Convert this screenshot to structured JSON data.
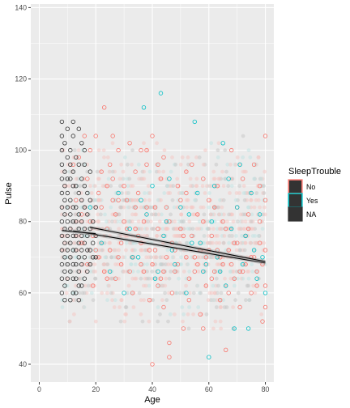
{
  "chart_data": {
    "type": "scatter",
    "title": "",
    "xlabel": "Age",
    "ylabel": "Pulse",
    "xlim": [
      -3,
      83
    ],
    "ylim": [
      35,
      141
    ],
    "x_ticks": [
      0,
      20,
      40,
      60,
      80
    ],
    "y_ticks": [
      40,
      60,
      80,
      100,
      120,
      140
    ],
    "grid": true,
    "legend": {
      "title": "SleepTrouble",
      "placement": "right",
      "entries": [
        {
          "label": "No",
          "color": "#F8766D"
        },
        {
          "label": "Yes",
          "color": "#00BFC4"
        },
        {
          "label": "NA",
          "color": "#333333"
        }
      ]
    },
    "background_points": {
      "note_color": "#c8c8c8",
      "x_range": [
        8,
        80
      ],
      "pulse_values": [
        50,
        52,
        54,
        56,
        58,
        60,
        62,
        64,
        66,
        68,
        70,
        72,
        74,
        76,
        78,
        80,
        82,
        84,
        86,
        88,
        90,
        92,
        94,
        96,
        98,
        100,
        102,
        104
      ]
    },
    "series": [
      {
        "name": "No",
        "color": "#F8766D",
        "points": [
          [
            12,
            96
          ],
          [
            13,
            86
          ],
          [
            14,
            98
          ],
          [
            15,
            82
          ],
          [
            16,
            104
          ],
          [
            17,
            92
          ],
          [
            18,
            100
          ],
          [
            19,
            76
          ],
          [
            20,
            104
          ],
          [
            21,
            88
          ],
          [
            22,
            84
          ],
          [
            23,
            112
          ],
          [
            24,
            78
          ],
          [
            25,
            96
          ],
          [
            26,
            92
          ],
          [
            27,
            82
          ],
          [
            28,
            100
          ],
          [
            29,
            74
          ],
          [
            30,
            90
          ],
          [
            31,
            86
          ],
          [
            32,
            102
          ],
          [
            33,
            70
          ],
          [
            34,
            94
          ],
          [
            35,
            88
          ],
          [
            36,
            68
          ],
          [
            37,
            80
          ],
          [
            38,
            96
          ],
          [
            39,
            58
          ],
          [
            40,
            104
          ],
          [
            41,
            72
          ],
          [
            42,
            62
          ],
          [
            43,
            92
          ],
          [
            44,
            56
          ],
          [
            45,
            84
          ],
          [
            46,
            42
          ],
          [
            47,
            74
          ],
          [
            48,
            66
          ],
          [
            49,
            90
          ],
          [
            50,
            78
          ],
          [
            51,
            50
          ],
          [
            52,
            88
          ],
          [
            53,
            64
          ],
          [
            54,
            96
          ],
          [
            55,
            70
          ],
          [
            56,
            82
          ],
          [
            57,
            54
          ],
          [
            58,
            92
          ],
          [
            59,
            62
          ],
          [
            60,
            86
          ],
          [
            61,
            76
          ],
          [
            62,
            66
          ],
          [
            63,
            90
          ],
          [
            64,
            58
          ],
          [
            65,
            80
          ],
          [
            66,
            44
          ],
          [
            67,
            72
          ],
          [
            68,
            100
          ],
          [
            69,
            64
          ],
          [
            70,
            84
          ],
          [
            71,
            56
          ],
          [
            72,
            92
          ],
          [
            73,
            68
          ],
          [
            74,
            78
          ],
          [
            75,
            60
          ],
          [
            76,
            96
          ],
          [
            77,
            66
          ],
          [
            78,
            74
          ],
          [
            79,
            52
          ],
          [
            80,
            104
          ],
          [
            80,
            86
          ],
          [
            80,
            72
          ],
          [
            80,
            62
          ],
          [
            80,
            56
          ],
          [
            79,
            68
          ],
          [
            78,
            80
          ],
          [
            15,
            74
          ],
          [
            17,
            68
          ],
          [
            19,
            62
          ],
          [
            21,
            70
          ],
          [
            23,
            66
          ],
          [
            25,
            72
          ],
          [
            27,
            64
          ],
          [
            29,
            68
          ],
          [
            31,
            78
          ],
          [
            33,
            60
          ],
          [
            35,
            76
          ],
          [
            37,
            66
          ],
          [
            39,
            72
          ],
          [
            41,
            84
          ],
          [
            43,
            64
          ],
          [
            45,
            70
          ],
          [
            47,
            60
          ],
          [
            49,
            68
          ],
          [
            51,
            76
          ],
          [
            53,
            58
          ],
          [
            55,
            66
          ],
          [
            57,
            72
          ],
          [
            59,
            70
          ],
          [
            61,
            64
          ],
          [
            63,
            72
          ],
          [
            65,
            68
          ],
          [
            67,
            60
          ],
          [
            69,
            74
          ],
          [
            71,
            66
          ],
          [
            73,
            76
          ],
          [
            75,
            70
          ],
          [
            77,
            62
          ],
          [
            18,
            80
          ],
          [
            20,
            72
          ],
          [
            22,
            94
          ],
          [
            24,
            64
          ],
          [
            26,
            86
          ],
          [
            28,
            70
          ],
          [
            30,
            80
          ],
          [
            32,
            66
          ],
          [
            34,
            78
          ],
          [
            36,
            74
          ],
          [
            38,
            84
          ],
          [
            40,
            68
          ],
          [
            42,
            78
          ],
          [
            44,
            66
          ],
          [
            46,
            80
          ],
          [
            48,
            72
          ],
          [
            50,
            86
          ],
          [
            52,
            70
          ],
          [
            54,
            76
          ],
          [
            56,
            68
          ],
          [
            58,
            80
          ],
          [
            60,
            72
          ],
          [
            62,
            84
          ],
          [
            64,
            70
          ],
          [
            66,
            78
          ],
          [
            68,
            68
          ],
          [
            70,
            74
          ],
          [
            72,
            66
          ],
          [
            74,
            82
          ],
          [
            76,
            70
          ],
          [
            78,
            90
          ],
          [
            40,
            40
          ],
          [
            46,
            46
          ],
          [
            58,
            50
          ],
          [
            38,
            100
          ],
          [
            42,
            96
          ],
          [
            24,
            90
          ],
          [
            28,
            86
          ],
          [
            34,
            84
          ],
          [
            36,
            100
          ],
          [
            44,
            98
          ],
          [
            26,
            104
          ],
          [
            52,
            94
          ]
        ]
      },
      {
        "name": "Yes",
        "color": "#00BFC4",
        "points": [
          [
            18,
            84
          ],
          [
            22,
            74
          ],
          [
            25,
            66
          ],
          [
            28,
            88
          ],
          [
            30,
            60
          ],
          [
            32,
            78
          ],
          [
            35,
            70
          ],
          [
            37,
            112
          ],
          [
            38,
            82
          ],
          [
            40,
            90
          ],
          [
            41,
            64
          ],
          [
            43,
            116
          ],
          [
            44,
            76
          ],
          [
            46,
            92
          ],
          [
            48,
            68
          ],
          [
            50,
            84
          ],
          [
            52,
            60
          ],
          [
            54,
            74
          ],
          [
            55,
            108
          ],
          [
            56,
            88
          ],
          [
            58,
            66
          ],
          [
            60,
            42
          ],
          [
            61,
            80
          ],
          [
            62,
            90
          ],
          [
            63,
            70
          ],
          [
            65,
            102
          ],
          [
            66,
            62
          ],
          [
            67,
            92
          ],
          [
            68,
            78
          ],
          [
            70,
            84
          ],
          [
            71,
            96
          ],
          [
            72,
            68
          ],
          [
            73,
            76
          ],
          [
            74,
            50
          ],
          [
            75,
            88
          ],
          [
            76,
            72
          ],
          [
            77,
            64
          ],
          [
            78,
            82
          ],
          [
            79,
            70
          ],
          [
            80,
            60
          ],
          [
            36,
            86
          ],
          [
            47,
            72
          ],
          [
            57,
            74
          ],
          [
            64,
            66
          ],
          [
            69,
            50
          ],
          [
            59,
            68
          ],
          [
            45,
            80
          ],
          [
            33,
            70
          ],
          [
            42,
            66
          ],
          [
            53,
            82
          ]
        ]
      },
      {
        "name": "NA",
        "color": "#333333",
        "points": [
          [
            8,
            108
          ],
          [
            8,
            104
          ],
          [
            8,
            100
          ],
          [
            8,
            96
          ],
          [
            8,
            92
          ],
          [
            8,
            88
          ],
          [
            8,
            84
          ],
          [
            8,
            80
          ],
          [
            8,
            76
          ],
          [
            8,
            72
          ],
          [
            8,
            68
          ],
          [
            8,
            64
          ],
          [
            8,
            60
          ],
          [
            9,
            102
          ],
          [
            9,
            94
          ],
          [
            9,
            90
          ],
          [
            9,
            86
          ],
          [
            9,
            82
          ],
          [
            9,
            78
          ],
          [
            9,
            74
          ],
          [
            9,
            70
          ],
          [
            9,
            66
          ],
          [
            9,
            62
          ],
          [
            10,
            106
          ],
          [
            10,
            98
          ],
          [
            10,
            88
          ],
          [
            10,
            84
          ],
          [
            10,
            80
          ],
          [
            10,
            76
          ],
          [
            10,
            72
          ],
          [
            10,
            68
          ],
          [
            10,
            64
          ],
          [
            11,
            100
          ],
          [
            11,
            92
          ],
          [
            11,
            86
          ],
          [
            11,
            82
          ],
          [
            11,
            78
          ],
          [
            11,
            74
          ],
          [
            11,
            70
          ],
          [
            11,
            66
          ],
          [
            11,
            58
          ],
          [
            12,
            108
          ],
          [
            12,
            104
          ],
          [
            12,
            94
          ],
          [
            12,
            90
          ],
          [
            12,
            84
          ],
          [
            12,
            80
          ],
          [
            12,
            76
          ],
          [
            12,
            72
          ],
          [
            12,
            68
          ],
          [
            12,
            64
          ],
          [
            12,
            60
          ],
          [
            13,
            98
          ],
          [
            13,
            90
          ],
          [
            13,
            84
          ],
          [
            13,
            80
          ],
          [
            13,
            76
          ],
          [
            13,
            72
          ],
          [
            13,
            68
          ],
          [
            13,
            64
          ],
          [
            14,
            106
          ],
          [
            14,
            96
          ],
          [
            14,
            88
          ],
          [
            14,
            82
          ],
          [
            14,
            78
          ],
          [
            14,
            74
          ],
          [
            14,
            70
          ],
          [
            14,
            66
          ],
          [
            14,
            62
          ],
          [
            15,
            102
          ],
          [
            15,
            92
          ],
          [
            15,
            86
          ],
          [
            15,
            80
          ],
          [
            15,
            76
          ],
          [
            15,
            72
          ],
          [
            15,
            68
          ],
          [
            15,
            62
          ],
          [
            16,
            96
          ],
          [
            16,
            90
          ],
          [
            16,
            84
          ],
          [
            16,
            78
          ],
          [
            16,
            74
          ],
          [
            16,
            70
          ],
          [
            16,
            64
          ],
          [
            17,
            88
          ],
          [
            17,
            82
          ],
          [
            17,
            76
          ],
          [
            17,
            72
          ],
          [
            17,
            66
          ],
          [
            18,
            94
          ],
          [
            18,
            86
          ],
          [
            18,
            78
          ],
          [
            18,
            72
          ],
          [
            18,
            68
          ],
          [
            19,
            80
          ],
          [
            19,
            74
          ],
          [
            19,
            70
          ],
          [
            20,
            84
          ],
          [
            20,
            76
          ],
          [
            20,
            70
          ],
          [
            10,
            92
          ],
          [
            11,
            96
          ],
          [
            9,
            58
          ],
          [
            13,
            60
          ],
          [
            16,
            100
          ],
          [
            14,
            58
          ]
        ]
      }
    ],
    "regression": [
      {
        "name": "No",
        "x": [
          12,
          80
        ],
        "y": [
          77.4,
          68.4
        ]
      },
      {
        "name": "Yes",
        "x": [
          18,
          80
        ],
        "y": [
          78.4,
          68.8
        ]
      },
      {
        "name": "NA",
        "x": [
          8,
          20
        ],
        "y": [
          77.5,
          76.6
        ]
      }
    ]
  }
}
